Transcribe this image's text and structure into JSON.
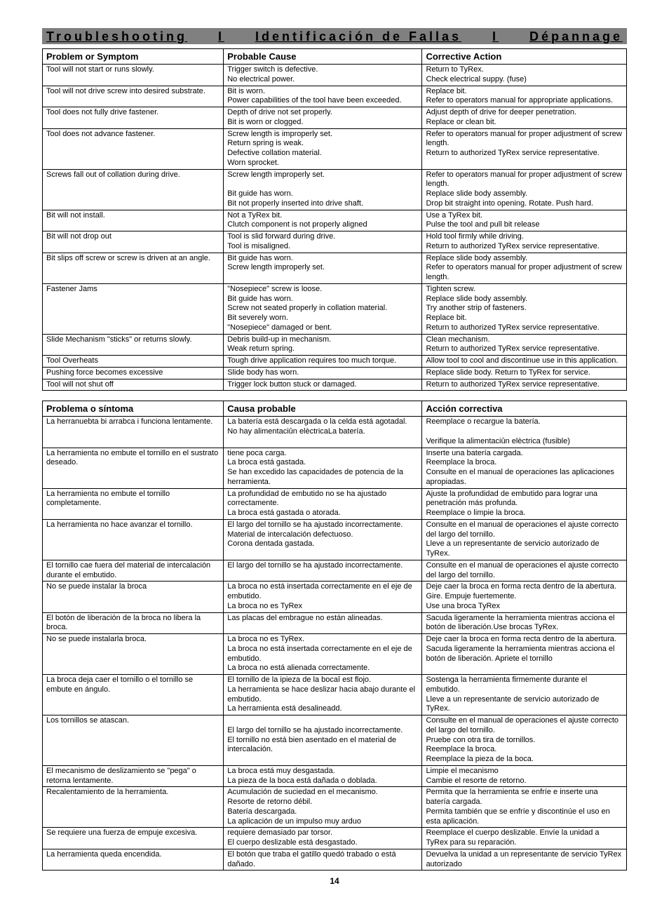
{
  "banner": {
    "en": "Troubleshooting",
    "sep1": "I",
    "es": "Identificación de Fallas",
    "sep2": "I",
    "fr": "Dépannage"
  },
  "tableEn": {
    "headers": {
      "c1": "Problem or Symptom",
      "c2": "Probable Cause",
      "c3": "Corrective Action"
    },
    "rows": [
      {
        "p": "Tool will not start or runs slowly.",
        "c": "Trigger switch is defective.\nNo electrical power.",
        "a": "Return to TyRex.\nCheck electrical suppy. (fuse)"
      },
      {
        "p": "Tool will not drive screw into desired substrate.",
        "c": "Bit is worn.\nPower capabilities of the tool have been exceeded.",
        "a": "Replace bit.\nRefer to operators manual for appropriate applications."
      },
      {
        "p": "Tool does not fully drive fastener.",
        "c": "Depth of drive not set properly.\nBit is worn or clogged.",
        "a": "Adjust depth of drive for deeper penetration.\nReplace or clean bit."
      },
      {
        "p": "Tool does not advance fastener.",
        "c": "Screw length is improperly set.\nReturn spring is weak.\nDefective collation material.\nWorn sprocket.",
        "a": "Refer to operators manual for proper adjustment of screw length.\nReturn to authorized TyRex service representative."
      },
      {
        "p": "Screws fall out of collation during drive.",
        "c": "Screw length improperly set.\n\nBit guide has worn.\nBit not properly inserted into drive shaft.",
        "a": "Refer to operators manual for proper adjustment  of screw length.\nReplace slide body assembly.\nDrop bit straight into opening. Rotate. Push hard."
      },
      {
        "p": "Bit will not install.",
        "c": "Not a TyRex bit.\nClutch component is not properly aligned",
        "a": "Use a TyRex bit.\nPulse the tool and pull bit release"
      },
      {
        "p": "Bit will not drop out",
        "c": "Tool is slid forward during drive.\nTool is misaligned.",
        "a": "Hold tool firmly while driving.\nReturn to authorized TyRex service representative."
      },
      {
        "p": "Bit slips off screw or screw is driven at an angle.",
        "c": "Bit guide has worn.\nScrew length improperly set.",
        "a": "Replace slide body assembly.\nRefer to operators manual for proper adjustment of screw length."
      },
      {
        "p": "Fastener Jams",
        "c": "\"Nosepiece\" screw is loose.\nBit guide has worn.\nScrew not seated properly in collation material.\nBit severely worn.\n\"Nosepiece\" damaged or bent.",
        "a": "Tighten screw.\nReplace slide body assembly.\nTry another strip of fasteners.\nReplace bit.\nReturn to authorized TyRex service representative."
      },
      {
        "p": "Slide Mechanism \"sticks\" or returns slowly.",
        "c": "Debris build-up in mechanism.\nWeak return spring.",
        "a": "Clean mechanism.\nReturn to authorized TyRex service representative."
      },
      {
        "p": "Tool Overheats",
        "c": "Tough drive application requires too much torque.",
        "a": "Allow tool to cool and discontinue use in this application."
      },
      {
        "p": "Pushing force becomes excessive",
        "c": "Slide body has worn.",
        "a": "Replace slide body. Return to TyRex for service."
      },
      {
        "p": "Tool will not shut off",
        "c": "Trigger lock button stuck or damaged.",
        "a": "Return to authorized TyRex service representative."
      }
    ]
  },
  "tableEs": {
    "headers": {
      "c1": "Problema o síntoma",
      "c2": "Causa probable",
      "c3": "Acción correctiva"
    },
    "rows": [
      {
        "p": "La herranuebta bi arrabca i funciona lentamente.",
        "c": "La batería está descargada o la celda está agotadal.\nNo hay alimentaciûn elèctricaLa batería.",
        "a": "Reemplace o recargue la batería.\n\nVerifique la alimentaciûn elèctrica (fusible)"
      },
      {
        "p": "La herramienta no embute el tornillo en el sustrato deseado.",
        "c": "tiene poca carga.\nLa broca está gastada.\nSe han excedido las capacidades de potencia de la herramienta.",
        "a": "Inserte una batería cargada.\nReemplace la broca.\nConsulte en el manual de operaciones las aplicaciones apropiadas."
      },
      {
        "p": "La herramienta no embute el tornillo completamente.",
        "c": "La profundidad de embutido no se ha ajustado correctamente.\nLa broca está gastada o atorada.",
        "a": "Ajuste la profundidad de embutido para lograr una penetración más profunda.\nReemplace o limpie la broca."
      },
      {
        "p": "La herramienta no hace avanzar el tornillo.",
        "c": "El largo del tornillo se ha ajustado incorrectamente.\nMaterial de intercalación defectuoso.\nCorona dentada gastada.",
        "a": "Consulte en el manual de operaciones el ajuste correcto del largo del tornillo.\nLleve a un representante de servicio autorizado de TyRex."
      },
      {
        "p": "El tornillo cae fuera del material de intercalación durante el embutido.",
        "c": "El largo del tornillo se ha ajustado incorrectamente.",
        "a": "Consulte en el manual de operaciones el ajuste correcto del largo del tornillo."
      },
      {
        "p": "No se puede instalar la broca",
        "c": "La broca no está insertada correctamente en el eje de embutido.\nLa broca no es TyRex",
        "a": "Deje caer la broca en forma recta dentro de la abertura. Gire. Empuje fuertemente.\nUse una broca TyRex"
      },
      {
        "p": "El botón de liberación de la broca no libera la broca.",
        "c": "Las placas del embrague no están alineadas.",
        "a": "Sacuda ligeramente la herramienta mientras acciona el botón de liberación.Use brocas TyRex."
      },
      {
        "p": "No se puede instalarla broca.",
        "c": "La broca no es TyRex.\nLa broca no está insertada correctamente en el eje de embutido.\nLa broca no está alienada correctamente.",
        "a": "Deje caer la broca en forma recta dentro de la abertura.\nSacuda ligeramente la herramienta mientras acciona el botón de liberación. Apriete el tornillo"
      },
      {
        "p": "La broca deja caer el tornillo o el tornillo se embute en ángulo.",
        "c": "El tornillo de la ipieza de la bocaî est flojo.\nLa herramienta se hace deslizar hacia abajo durante el embutido.\nLa herramienta está desalineadd.",
        "a": "Sostenga la herramienta firmemente durante el embutido.\nLleve a un representante de servicio autorizado de TyRex."
      },
      {
        "p": "Los tornillos se atascan.",
        "c": "\nEl largo del tornillo se ha ajustado incorrectamente.\nEl tornillo no está bien asentado en el material de intercalación.",
        "a": "Consulte en el manual de operaciones el ajuste correcto del largo del tornillo.\nPruebe con otra tira de tornillos.\nReemplace la broca.\nReemplace la pieza de la boca."
      },
      {
        "p": "El mecanismo de deslizamiento se \"pega\" o retorna lentamente.",
        "c": "La broca está muy desgastada.\nLa pieza de la boca está dañada o doblada.",
        "a": "Limpie el mecanismo\nCambie el resorte de retorno."
      },
      {
        "p": "Recalentamiento de la herramienta.",
        "c": "Acumulación de suciedad en el mecanismo.\nResorte de retorno débil.\nBatería descargada.\nLa aplicación de un impulso muy arduo",
        "a": "Permita que la herramienta se enfríe e inserte una batería cargada.\nPermita también que se enfríe y discontinúe el uso en esta aplicación."
      },
      {
        "p": "Se requiere una fuerza de empuje excesiva.",
        "c": "requiere demasiado par torsor.\nEl cuerpo deslizable está desgastado.",
        "a": "Reemplace el cuerpo deslizable. Envíe la unidad a TyRex para su reparación."
      },
      {
        "p": "La herramienta queda encendida.",
        "c": "El botón que traba el gatillo quedó trabado o está dañado.",
        "a": "Devuelva la unidad a un representante de servicio TyRex autorizado"
      }
    ]
  },
  "pageNumber": "14"
}
